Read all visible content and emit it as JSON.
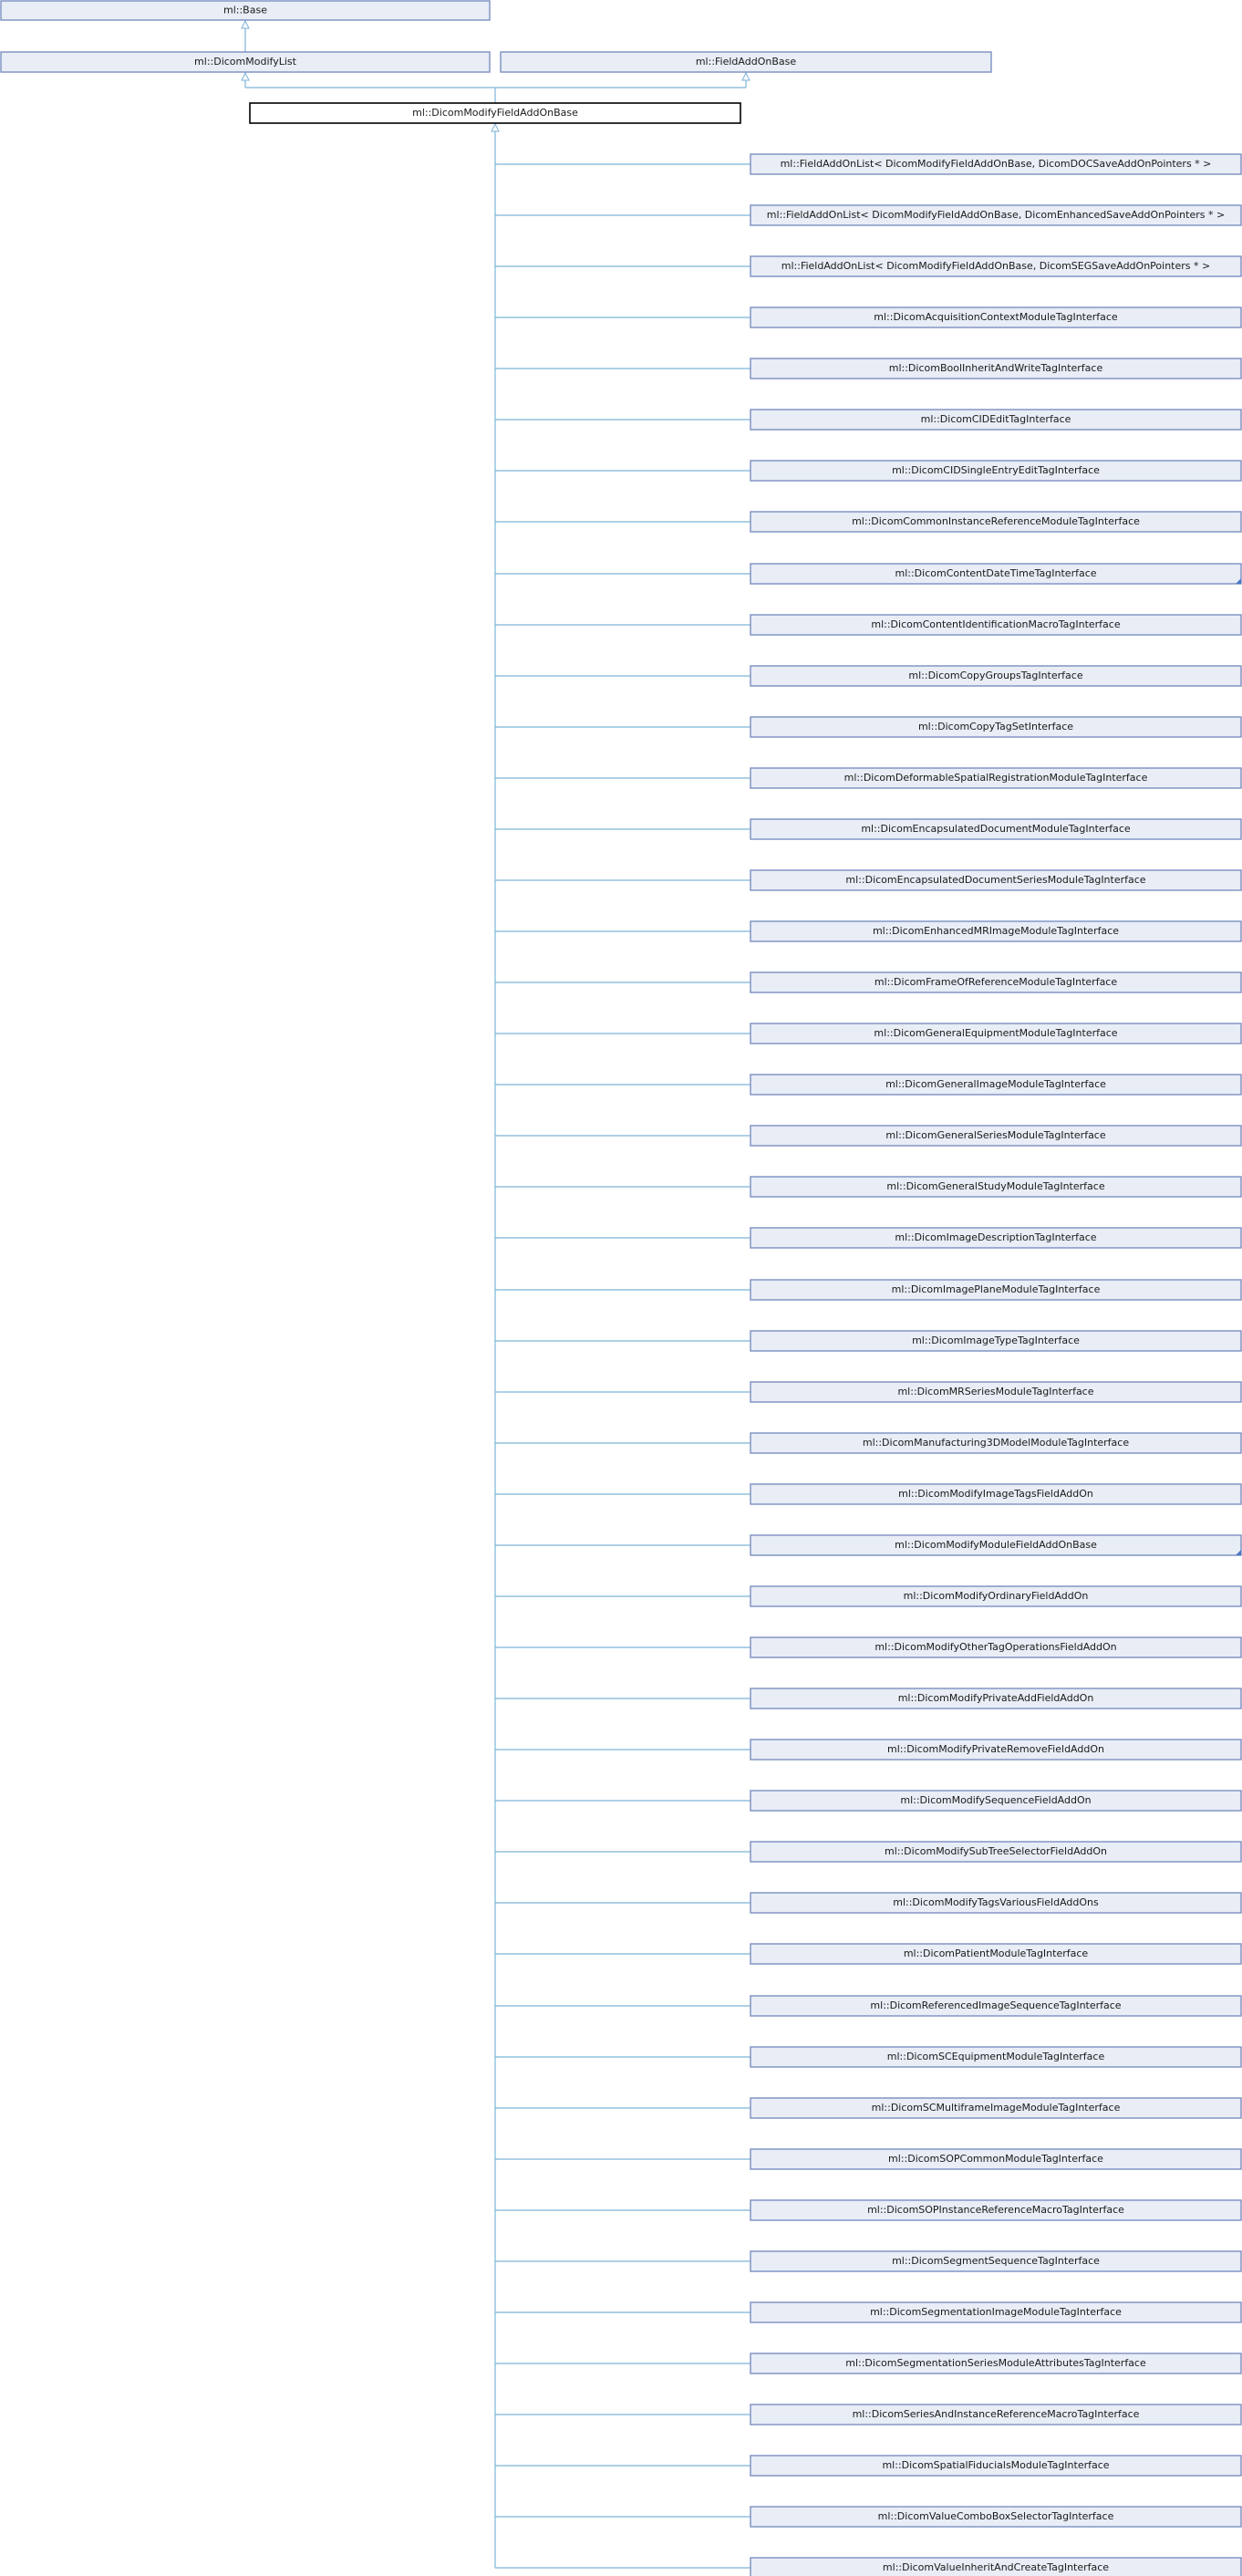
{
  "diagram": {
    "type": "inheritance",
    "base_classes": [
      {
        "id": "base",
        "label": "ml::Base"
      },
      {
        "id": "dicom-modify-list",
        "label": "ml::DicomModifyList"
      },
      {
        "id": "field-addon-base",
        "label": "ml::FieldAddOnBase"
      }
    ],
    "current_class": {
      "id": "current",
      "label": "ml::DicomModifyFieldAddOnBase"
    },
    "derived_classes": [
      {
        "label": "ml::FieldAddOnList< DicomModifyFieldAddOnBase, DicomDOCSaveAddOnPointers * >",
        "has_more": false
      },
      {
        "label": "ml::FieldAddOnList< DicomModifyFieldAddOnBase, DicomEnhancedSaveAddOnPointers * >",
        "has_more": false
      },
      {
        "label": "ml::FieldAddOnList< DicomModifyFieldAddOnBase, DicomSEGSaveAddOnPointers * >",
        "has_more": false
      },
      {
        "label": "ml::DicomAcquisitionContextModuleTagInterface",
        "has_more": false
      },
      {
        "label": "ml::DicomBoolInheritAndWriteTagInterface",
        "has_more": false
      },
      {
        "label": "ml::DicomCIDEditTagInterface",
        "has_more": false
      },
      {
        "label": "ml::DicomCIDSingleEntryEditTagInterface",
        "has_more": false
      },
      {
        "label": "ml::DicomCommonInstanceReferenceModuleTagInterface",
        "has_more": false
      },
      {
        "label": "ml::DicomContentDateTimeTagInterface",
        "has_more": true
      },
      {
        "label": "ml::DicomContentIdentificationMacroTagInterface",
        "has_more": false
      },
      {
        "label": "ml::DicomCopyGroupsTagInterface",
        "has_more": false
      },
      {
        "label": "ml::DicomCopyTagSetInterface",
        "has_more": false
      },
      {
        "label": "ml::DicomDeformableSpatialRegistrationModuleTagInterface",
        "has_more": false
      },
      {
        "label": "ml::DicomEncapsulatedDocumentModuleTagInterface",
        "has_more": false
      },
      {
        "label": "ml::DicomEncapsulatedDocumentSeriesModuleTagInterface",
        "has_more": false
      },
      {
        "label": "ml::DicomEnhancedMRImageModuleTagInterface",
        "has_more": false
      },
      {
        "label": "ml::DicomFrameOfReferenceModuleTagInterface",
        "has_more": false
      },
      {
        "label": "ml::DicomGeneralEquipmentModuleTagInterface",
        "has_more": false
      },
      {
        "label": "ml::DicomGeneralImageModuleTagInterface",
        "has_more": false
      },
      {
        "label": "ml::DicomGeneralSeriesModuleTagInterface",
        "has_more": false
      },
      {
        "label": "ml::DicomGeneralStudyModuleTagInterface",
        "has_more": false
      },
      {
        "label": "ml::DicomImageDescriptionTagInterface",
        "has_more": false
      },
      {
        "label": "ml::DicomImagePlaneModuleTagInterface",
        "has_more": false
      },
      {
        "label": "ml::DicomImageTypeTagInterface",
        "has_more": false
      },
      {
        "label": "ml::DicomMRSeriesModuleTagInterface",
        "has_more": false
      },
      {
        "label": "ml::DicomManufacturing3DModelModuleTagInterface",
        "has_more": false
      },
      {
        "label": "ml::DicomModifyImageTagsFieldAddOn",
        "has_more": false
      },
      {
        "label": "ml::DicomModifyModuleFieldAddOnBase",
        "has_more": true
      },
      {
        "label": "ml::DicomModifyOrdinaryFieldAddOn",
        "has_more": false
      },
      {
        "label": "ml::DicomModifyOtherTagOperationsFieldAddOn",
        "has_more": false
      },
      {
        "label": "ml::DicomModifyPrivateAddFieldAddOn",
        "has_more": false
      },
      {
        "label": "ml::DicomModifyPrivateRemoveFieldAddOn",
        "has_more": false
      },
      {
        "label": "ml::DicomModifySequenceFieldAddOn",
        "has_more": false
      },
      {
        "label": "ml::DicomModifySubTreeSelectorFieldAddOn",
        "has_more": false
      },
      {
        "label": "ml::DicomModifyTagsVariousFieldAddOns",
        "has_more": false
      },
      {
        "label": "ml::DicomPatientModuleTagInterface",
        "has_more": false
      },
      {
        "label": "ml::DicomReferencedImageSequenceTagInterface",
        "has_more": false
      },
      {
        "label": "ml::DicomSCEquipmentModuleTagInterface",
        "has_more": false
      },
      {
        "label": "ml::DicomSCMultiframeImageModuleTagInterface",
        "has_more": false
      },
      {
        "label": "ml::DicomSOPCommonModuleTagInterface",
        "has_more": false
      },
      {
        "label": "ml::DicomSOPInstanceReferenceMacroTagInterface",
        "has_more": false
      },
      {
        "label": "ml::DicomSegmentSequenceTagInterface",
        "has_more": false
      },
      {
        "label": "ml::DicomSegmentationImageModuleTagInterface",
        "has_more": false
      },
      {
        "label": "ml::DicomSegmentationSeriesModuleAttributesTagInterface",
        "has_more": false
      },
      {
        "label": "ml::DicomSeriesAndInstanceReferenceMacroTagInterface",
        "has_more": false
      },
      {
        "label": "ml::DicomSpatialFiducialsModuleTagInterface",
        "has_more": false
      },
      {
        "label": "ml::DicomValueComboBoxSelectorTagInterface",
        "has_more": false
      },
      {
        "label": "ml::DicomValueInheritAndCreateTagInterface",
        "has_more": false
      }
    ],
    "colors": {
      "node_fill": "#e8edf6",
      "node_border": "#7b8fc0",
      "edge": "#7db3d8",
      "current_border": "#000000"
    }
  }
}
